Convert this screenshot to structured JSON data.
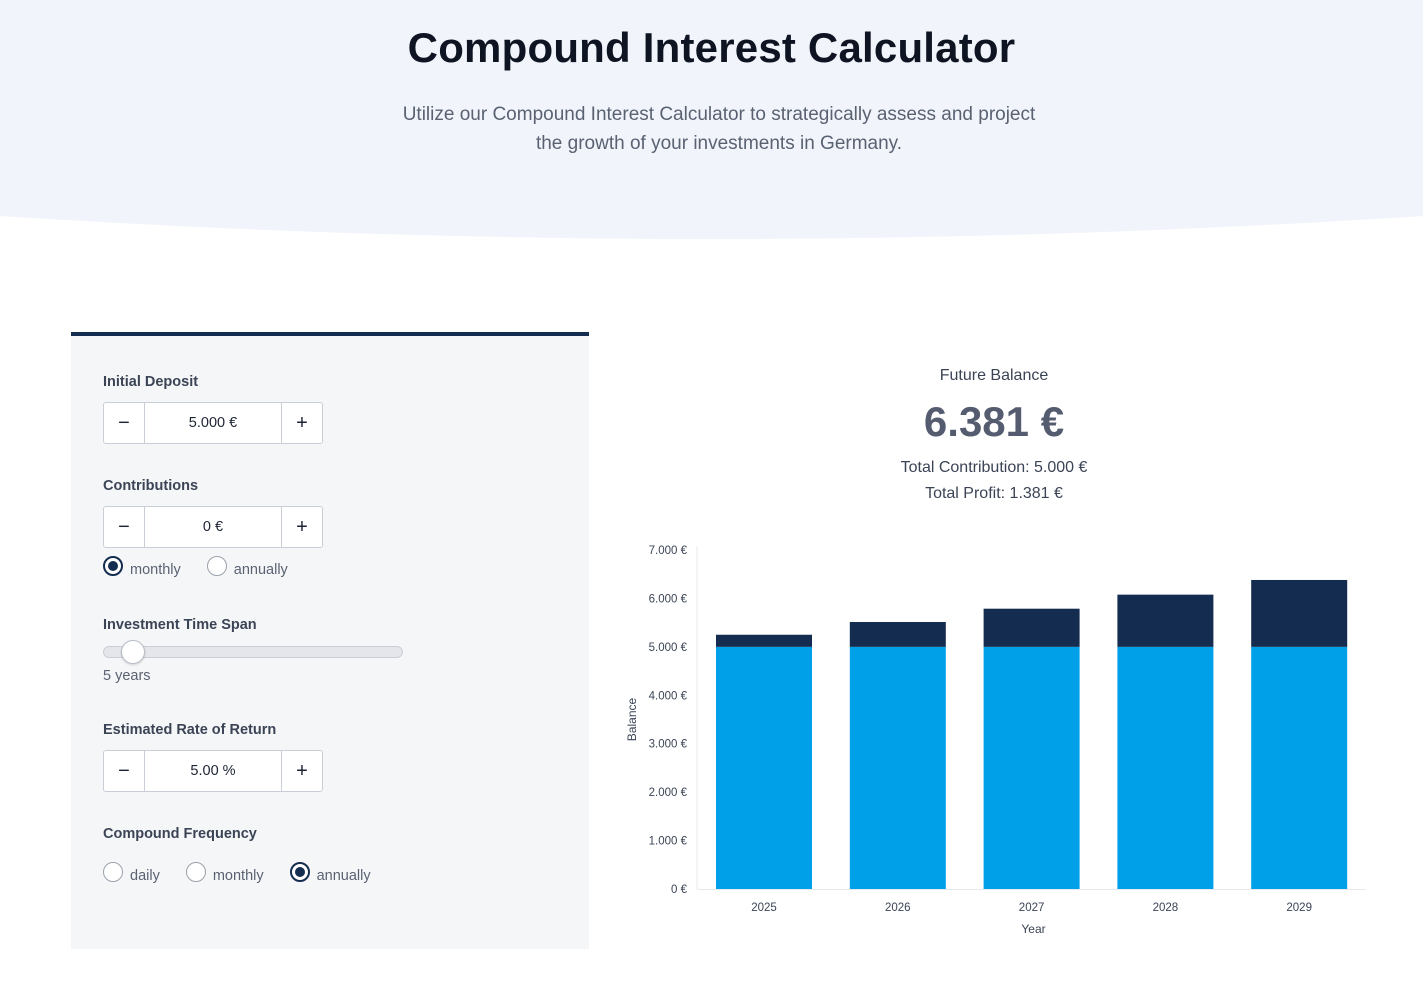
{
  "header": {
    "title": "Compound Interest Calculator",
    "subtitle_line1": "Utilize our Compound Interest Calculator to strategically assess and project",
    "subtitle_line2": "the growth of your investments in Germany."
  },
  "form": {
    "initial_deposit": {
      "label": "Initial Deposit",
      "value": "5.000 €",
      "minus": "−",
      "plus": "+"
    },
    "contributions": {
      "label": "Contributions",
      "value": "0 €",
      "minus": "−",
      "plus": "+",
      "options": [
        "monthly",
        "annually"
      ],
      "selected": "monthly"
    },
    "time_span": {
      "label": "Investment Time Span",
      "value_text": "5 years",
      "years": 5,
      "fraction": 0.06
    },
    "rate": {
      "label": "Estimated Rate of Return",
      "value": "5.00 %",
      "minus": "−",
      "plus": "+"
    },
    "compound_frequency": {
      "label": "Compound Frequency",
      "options": [
        "daily",
        "monthly",
        "annually"
      ],
      "selected": "annually"
    }
  },
  "summary": {
    "label": "Future Balance",
    "value": "6.381 €",
    "total_contribution": "Total Contribution: 5.000 €",
    "total_profit": "Total Profit: 1.381 €"
  },
  "colors": {
    "accent": "#142c4f",
    "principal": "#00a0e9",
    "interest": "#142c4f",
    "hero_bg": "#f1f4fb"
  },
  "chart_data": {
    "type": "bar",
    "stacked": true,
    "categories": [
      "2025",
      "2026",
      "2027",
      "2028",
      "2029"
    ],
    "series": [
      {
        "values": [
          5000,
          5000,
          5000,
          5000,
          5000
        ],
        "color": "#00a0e9"
      },
      {
        "values": [
          250,
          513,
          788,
          1078,
          1381
        ],
        "color": "#142c4f"
      }
    ],
    "xlabel": "Year",
    "ylabel": "Balance",
    "ylim": [
      0,
      7000
    ],
    "yticks": [
      0,
      1000,
      2000,
      3000,
      4000,
      5000,
      6000,
      7000
    ],
    "ytick_labels": [
      "0 €",
      "1.000 €",
      "2.000 €",
      "3.000 €",
      "4.000 €",
      "5.000 €",
      "6.000 €",
      "7.000 €"
    ],
    "grid": false
  }
}
